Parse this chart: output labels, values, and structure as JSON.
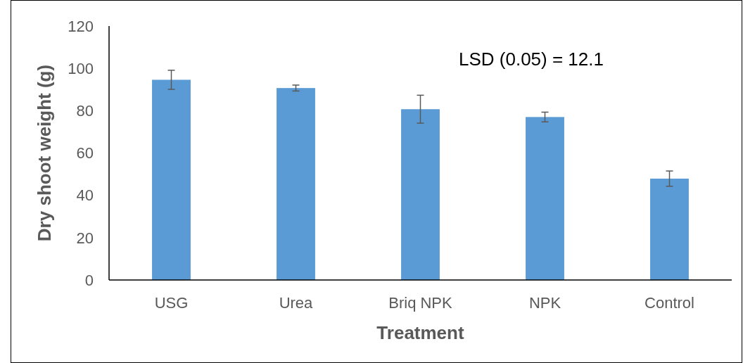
{
  "chart_data": {
    "type": "bar",
    "xlabel": "Treatment",
    "ylabel": "Dry shoot weight (g)",
    "categories": [
      "USG",
      "Urea",
      "Briq NPK",
      "NPK",
      "Control"
    ],
    "values": [
      94.6,
      90.7,
      80.7,
      77.0,
      47.9
    ],
    "errors": [
      4.5,
      1.4,
      6.6,
      2.3,
      3.6
    ],
    "color": "#5b9bd5",
    "ylim": [
      0,
      120
    ],
    "yticks": [
      0,
      20,
      40,
      60,
      80,
      100,
      120
    ],
    "annotations": [
      "LSD (0.05) = 12.1"
    ],
    "grid": false
  }
}
